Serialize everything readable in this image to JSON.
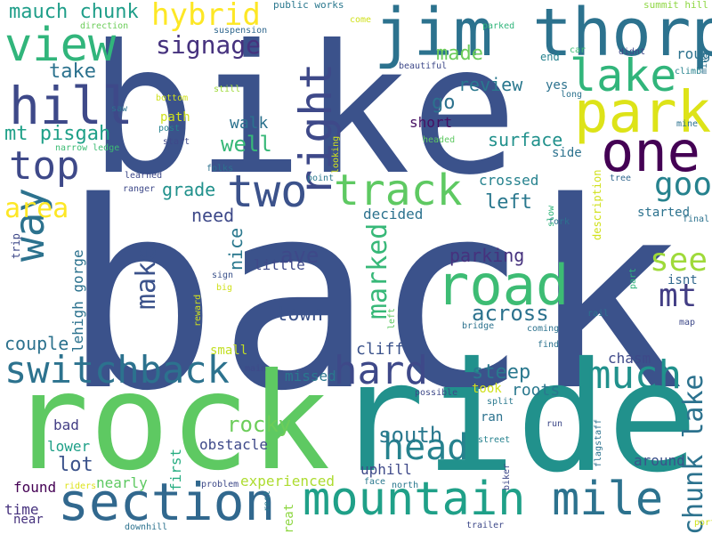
{
  "words": [
    {
      "text": "back",
      "color": "#3b528b"
    },
    {
      "text": "bike",
      "color": "#3b528b"
    },
    {
      "text": "ride",
      "color": "#21918c"
    },
    {
      "text": "rock",
      "color": "#5ec962"
    },
    {
      "text": "jim thorpe",
      "color": "#2c728e"
    },
    {
      "text": "park",
      "color": "#dde318"
    },
    {
      "text": "road",
      "color": "#3dbc74"
    },
    {
      "text": "one",
      "color": "#440154"
    },
    {
      "text": "section",
      "color": "#31688e"
    },
    {
      "text": "mountain",
      "color": "#1fa088"
    },
    {
      "text": "mile",
      "color": "#2c728e"
    },
    {
      "text": "hill",
      "color": "#3e4989"
    },
    {
      "text": "view",
      "color": "#31b57b"
    },
    {
      "text": "lake",
      "color": "#31b57b"
    },
    {
      "text": "right",
      "color": "#3e4989"
    },
    {
      "text": "two",
      "color": "#3b528b"
    },
    {
      "text": "track",
      "color": "#5ec962"
    },
    {
      "text": "way",
      "color": "#2c728e"
    },
    {
      "text": "top",
      "color": "#3e4989"
    },
    {
      "text": "hard",
      "color": "#3e4989"
    },
    {
      "text": "much",
      "color": "#21918c"
    },
    {
      "text": "switchback",
      "color": "#2c728e"
    },
    {
      "text": "head",
      "color": "#26828e"
    },
    {
      "text": "good",
      "color": "#26828e"
    },
    {
      "text": "see",
      "color": "#9fda3a"
    },
    {
      "text": "mt",
      "color": "#433e85"
    },
    {
      "text": "chunk lake",
      "color": "#2c728e"
    },
    {
      "text": "marked",
      "color": "#37b878"
    },
    {
      "text": "hybrid",
      "color": "#fde725"
    },
    {
      "text": "area",
      "color": "#fde725"
    },
    {
      "text": "make",
      "color": "#3b528b"
    },
    {
      "text": "signage",
      "color": "#46327e"
    },
    {
      "text": "mauch chunk",
      "color": "#1f9e89"
    },
    {
      "text": "across",
      "color": "#2c728e"
    },
    {
      "text": "rocky",
      "color": "#6ccd5a"
    },
    {
      "text": "south",
      "color": "#2a788e"
    },
    {
      "text": "well",
      "color": "#37b878"
    },
    {
      "text": "ave",
      "color": "#3e4989"
    },
    {
      "text": "town",
      "color": "#3b528b"
    },
    {
      "text": "surface",
      "color": "#21918c"
    },
    {
      "text": "made",
      "color": "#6ccd5a"
    },
    {
      "text": "review",
      "color": "#2a788e"
    },
    {
      "text": "go",
      "color": "#2c728e"
    },
    {
      "text": "take",
      "color": "#2c728e"
    },
    {
      "text": "mt pisgah",
      "color": "#1fa088"
    },
    {
      "text": "left",
      "color": "#2a788e"
    },
    {
      "text": "parking",
      "color": "#46327e"
    },
    {
      "text": "steep",
      "color": "#2a788e"
    },
    {
      "text": "grade",
      "color": "#21918c"
    },
    {
      "text": "need",
      "color": "#3e4989"
    },
    {
      "text": "nice",
      "color": "#2a788e"
    },
    {
      "text": "couple",
      "color": "#2c728e"
    },
    {
      "text": "lot",
      "color": "#3b528b"
    },
    {
      "text": "walk",
      "color": "#2c728e"
    },
    {
      "text": "crossed",
      "color": "#26828e"
    },
    {
      "text": "decided",
      "color": "#2c728e"
    },
    {
      "text": "short",
      "color": "#471063"
    },
    {
      "text": "lehigh gorge",
      "color": "#2c728e"
    },
    {
      "text": "little",
      "color": "#3e4989"
    },
    {
      "text": "cliff",
      "color": "#3b528b"
    },
    {
      "text": "missed",
      "color": "#2a788e"
    },
    {
      "text": "roots",
      "color": "#2a788e"
    },
    {
      "text": "took",
      "color": "#d0e11c"
    },
    {
      "text": "chasm",
      "color": "#3e4989"
    },
    {
      "text": "experienced",
      "color": "#addc30"
    },
    {
      "text": "obstacle",
      "color": "#3e4989"
    },
    {
      "text": "lower",
      "color": "#1fa088"
    },
    {
      "text": "found",
      "color": "#440154"
    },
    {
      "text": "bad",
      "color": "#433e85"
    },
    {
      "text": "time",
      "color": "#46327e"
    },
    {
      "text": "nearly",
      "color": "#5ec962"
    },
    {
      "text": "first",
      "color": "#26ad81"
    },
    {
      "text": "uphill",
      "color": "#3e4989"
    },
    {
      "text": "ran",
      "color": "#2c728e"
    },
    {
      "text": "yes",
      "color": "#2c728e"
    },
    {
      "text": "rough",
      "color": "#2c728e"
    },
    {
      "text": "end",
      "color": "#26828e"
    },
    {
      "text": "around",
      "color": "#3b528b"
    },
    {
      "text": "started",
      "color": "#2c728e"
    },
    {
      "text": "isnt",
      "color": "#31688e"
    },
    {
      "text": "side",
      "color": "#2c728e"
    },
    {
      "text": "path",
      "color": "#d0e11c"
    },
    {
      "text": "small",
      "color": "#c2df23"
    },
    {
      "text": "great",
      "color": "#8fd744"
    },
    {
      "text": "near",
      "color": "#46327e"
    },
    {
      "text": "public works",
      "color": "#2a788e"
    },
    {
      "text": "summit hill",
      "color": "#8fd744"
    },
    {
      "text": "direction",
      "color": "#6ccd5a"
    },
    {
      "text": "suspension",
      "color": "#31688e"
    },
    {
      "text": "parked",
      "color": "#31b57b"
    },
    {
      "text": "come",
      "color": "#d0e11c"
    },
    {
      "text": "car",
      "color": "#3dbc74"
    },
    {
      "text": "didnt",
      "color": "#3e4989"
    },
    {
      "text": "climb",
      "color": "#26828e"
    },
    {
      "text": "mins",
      "color": "#2c728e"
    },
    {
      "text": "beautiful",
      "color": "#3e4989"
    },
    {
      "text": "long",
      "color": "#2c728e"
    },
    {
      "text": "still",
      "color": "#9fda3a"
    },
    {
      "text": "bottom",
      "color": "#d0e11c"
    },
    {
      "text": "saw",
      "color": "#2c728e"
    },
    {
      "text": "post",
      "color": "#26828e"
    },
    {
      "text": "start",
      "color": "#3e4989"
    },
    {
      "text": "narrow ledge",
      "color": "#3dbc74"
    },
    {
      "text": "headed",
      "color": "#5ec962"
    },
    {
      "text": "mine",
      "color": "#2c728e"
    },
    {
      "text": "looking",
      "color": "#d0e11c"
    },
    {
      "text": "folks",
      "color": "#2c728e"
    },
    {
      "text": "point",
      "color": "#2a788e"
    },
    {
      "text": "learned",
      "color": "#3e4989"
    },
    {
      "text": "ranger",
      "color": "#3e4989"
    },
    {
      "text": "tree",
      "color": "#31688e"
    },
    {
      "text": "description",
      "color": "#d0e11c"
    },
    {
      "text": "final",
      "color": "#2c728e"
    },
    {
      "text": "fork",
      "color": "#2c728e"
    },
    {
      "text": "slow",
      "color": "#31b57b"
    },
    {
      "text": "trip",
      "color": "#3e4989"
    },
    {
      "text": "sign",
      "color": "#3b528b"
    },
    {
      "text": "big",
      "color": "#d0e11c"
    },
    {
      "text": "reward",
      "color": "#d0e11c"
    },
    {
      "text": "part",
      "color": "#31b57b"
    },
    {
      "text": "rail",
      "color": "#2c728e"
    },
    {
      "text": "map",
      "color": "#3e4989"
    },
    {
      "text": "coming",
      "color": "#2c728e"
    },
    {
      "text": "find",
      "color": "#2c728e"
    },
    {
      "text": "bridge",
      "color": "#2c728e"
    },
    {
      "text": "left",
      "color": "#5ec962"
    },
    {
      "text": "main",
      "color": "#3e4989"
    },
    {
      "text": "possible",
      "color": "#3e4989"
    },
    {
      "text": "split",
      "color": "#2a788e"
    },
    {
      "text": "run",
      "color": "#3e4989"
    },
    {
      "text": "street",
      "color": "#26828e"
    },
    {
      "text": "flagstaff",
      "color": "#2c728e"
    },
    {
      "text": "biker",
      "color": "#3e4989"
    },
    {
      "text": "riders",
      "color": "#dde318"
    },
    {
      "text": "problem",
      "color": "#3e4989"
    },
    {
      "text": "rest",
      "color": "#2a788e"
    },
    {
      "text": "face",
      "color": "#2a788e"
    },
    {
      "text": "north",
      "color": "#2a788e"
    },
    {
      "text": "trailer",
      "color": "#3e4989"
    },
    {
      "text": "downhill",
      "color": "#2c728e"
    },
    {
      "text": "portion",
      "color": "#d0e11c"
    }
  ]
}
